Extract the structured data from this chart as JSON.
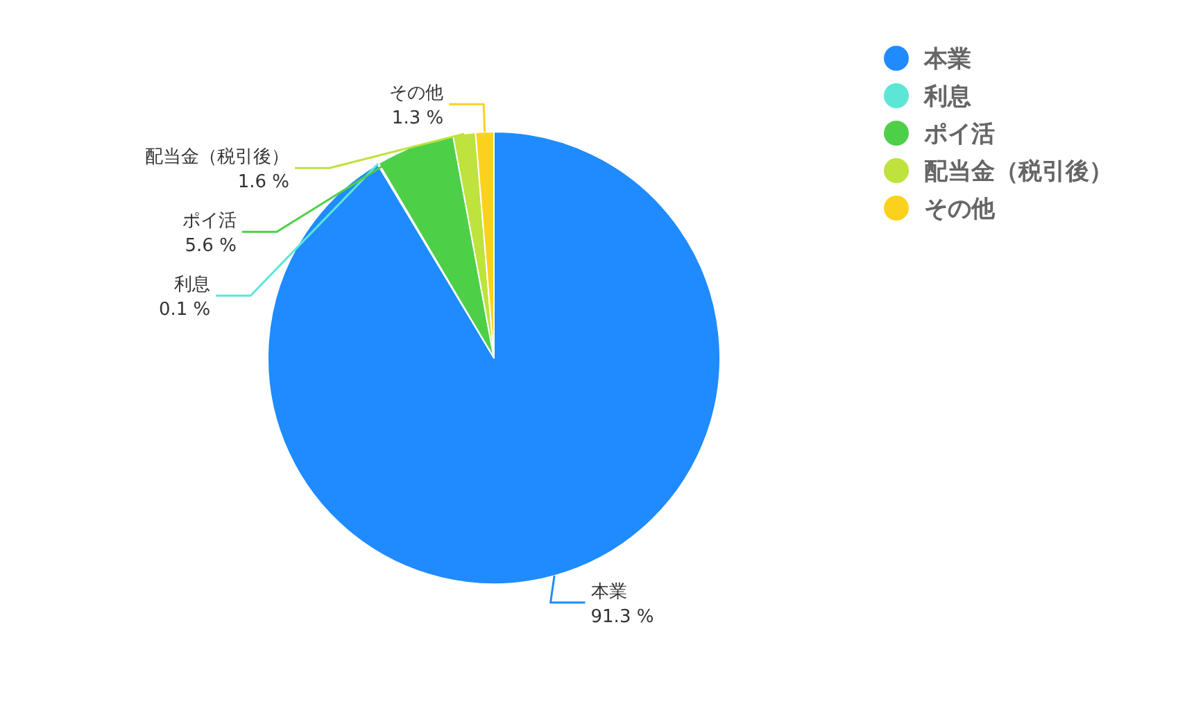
{
  "chart_data": {
    "type": "pie",
    "categories": [
      "本業",
      "利息",
      "ポイ活",
      "配当金（税引後）",
      "その他"
    ],
    "values": [
      91.3,
      0.1,
      5.6,
      1.6,
      1.3
    ],
    "colors": [
      "#1f8bff",
      "#5ce6d6",
      "#4ecf48",
      "#bde33c",
      "#fad21e"
    ],
    "value_labels": [
      "91.3 %",
      "0.1 %",
      "5.6 %",
      "1.6 %",
      "1.3 %"
    ],
    "legend": "top right"
  }
}
